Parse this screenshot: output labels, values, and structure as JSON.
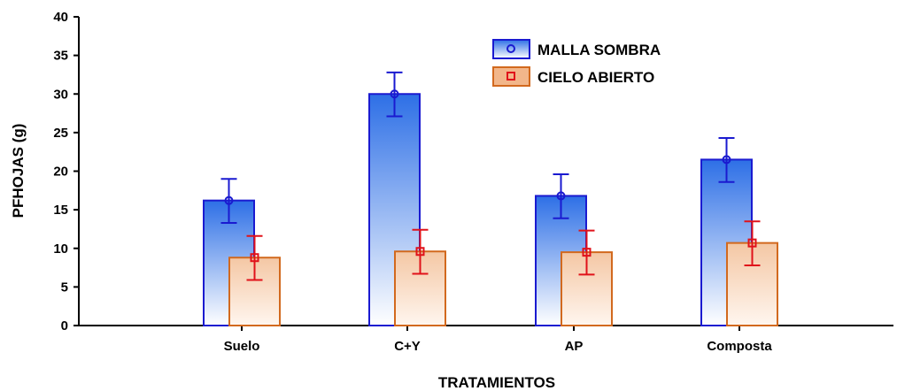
{
  "chart_data": {
    "type": "bar",
    "title": "",
    "xlabel": "TRATAMIENTOS",
    "ylabel": "PFHOJAS (g)",
    "ylim": [
      0,
      40
    ],
    "yticks": [
      "0",
      "5",
      "10",
      "15",
      "20",
      "25",
      "30",
      "35",
      "40"
    ],
    "categories": [
      "Suelo",
      "C+Y",
      "AP",
      "Composta"
    ],
    "error_bars": true,
    "legend_position": "top-right",
    "series": [
      {
        "name": "MALLA SOMBRA",
        "values": [
          16.2,
          30.0,
          16.8,
          21.5
        ],
        "error_low": [
          13.3,
          27.1,
          13.9,
          18.6
        ],
        "error_high": [
          19.0,
          32.8,
          19.6,
          24.3
        ],
        "color": "#2f6fe0",
        "marker_color": "#1a1ad0",
        "marker": "circle"
      },
      {
        "name": "CIELO ABIERTO",
        "values": [
          8.8,
          9.6,
          9.5,
          10.7
        ],
        "error_low": [
          5.9,
          6.7,
          6.6,
          7.8
        ],
        "error_high": [
          11.6,
          12.4,
          12.3,
          13.5
        ],
        "color": "#f2b68a",
        "marker_color": "#e0121a",
        "marker": "square"
      }
    ]
  }
}
